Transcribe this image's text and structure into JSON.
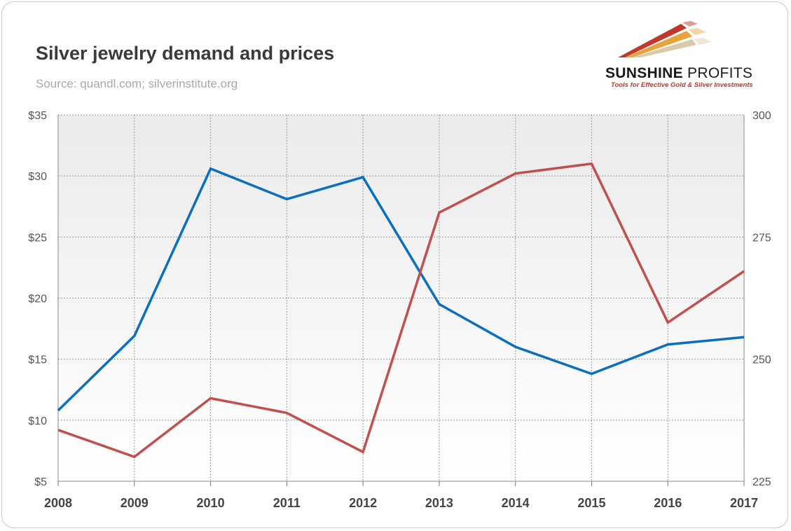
{
  "header": {
    "title": "Silver jewelry demand and prices",
    "subtitle": "Source: quandl.com; silverinstitute.org"
  },
  "logo": {
    "brand_bold": "SUNSHINE",
    "brand_light": " PROFITS",
    "tagline": "Tools for Effective Gold & Silver Investments",
    "colors": [
      "#c0392b",
      "#e8a33d",
      "#d9c9a8"
    ]
  },
  "chart_data": {
    "type": "line",
    "title": "Silver jewelry demand and prices",
    "subtitle": "Source: quandl.com; silverinstitute.org",
    "x": [
      "2008",
      "2009",
      "2010",
      "2011",
      "2012",
      "2013",
      "2014",
      "2015",
      "2016",
      "2017"
    ],
    "y_left": {
      "range": [
        5,
        35
      ],
      "ticks": [
        35,
        30,
        25,
        20,
        15,
        10,
        5
      ],
      "tick_labels": [
        "$35",
        "$30",
        "$25",
        "$20",
        "$15",
        "$10",
        "$5"
      ]
    },
    "y_right": {
      "range": [
        225,
        300
      ],
      "ticks": [
        300,
        275,
        250,
        225
      ],
      "tick_labels": [
        "300",
        "275",
        "250",
        "225"
      ]
    },
    "series": [
      {
        "axis": "left",
        "color": "#0a6fbf",
        "values": [
          10.8,
          16.9,
          30.6,
          28.1,
          29.9,
          19.5,
          16.0,
          13.8,
          16.2,
          16.8
        ]
      },
      {
        "axis": "right",
        "color": "#c0504d",
        "values": [
          235.5,
          230.0,
          242.0,
          239.0,
          231.0,
          280.0,
          288.0,
          290.0,
          257.5,
          268.0
        ]
      }
    ],
    "grid": true,
    "legend": "none"
  }
}
